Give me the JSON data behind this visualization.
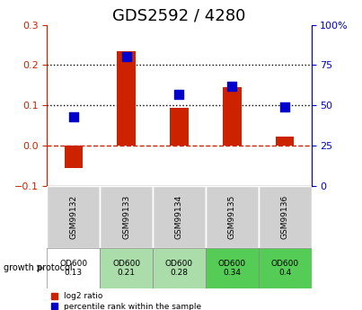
{
  "title": "GDS2592 / 4280",
  "samples": [
    "GSM99132",
    "GSM99133",
    "GSM99134",
    "GSM99135",
    "GSM99136"
  ],
  "log2_ratio": [
    -0.055,
    0.235,
    0.093,
    0.145,
    0.022
  ],
  "percentile_rank": [
    0.108,
    0.212,
    0.143,
    0.157,
    0.098
  ],
  "percentile_rank_pct": [
    43,
    80,
    57,
    62,
    49
  ],
  "growth_protocol_labels": [
    "OD600\n0.13",
    "OD600\n0.21",
    "OD600\n0.28",
    "OD600\n0.34",
    "OD600\n0.4"
  ],
  "growth_protocol_colors": [
    "#ffffff",
    "#aaddaa",
    "#aaddaa",
    "#55cc55",
    "#55cc55"
  ],
  "bar_color_red": "#cc2200",
  "dot_color_blue": "#0000cc",
  "left_axis_color": "#cc2200",
  "right_axis_color": "#0000cc",
  "ylim_left": [
    -0.1,
    0.3
  ],
  "ylim_right": [
    0,
    100
  ],
  "yticks_left": [
    -0.1,
    0.0,
    0.1,
    0.2,
    0.3
  ],
  "yticks_right": [
    0,
    25,
    50,
    75,
    100
  ],
  "hline_y": 0.0,
  "dotted_lines": [
    0.1,
    0.2
  ],
  "bar_width": 0.35,
  "dot_size": 50,
  "title_fontsize": 13,
  "tick_fontsize": 8,
  "label_fontsize": 8
}
